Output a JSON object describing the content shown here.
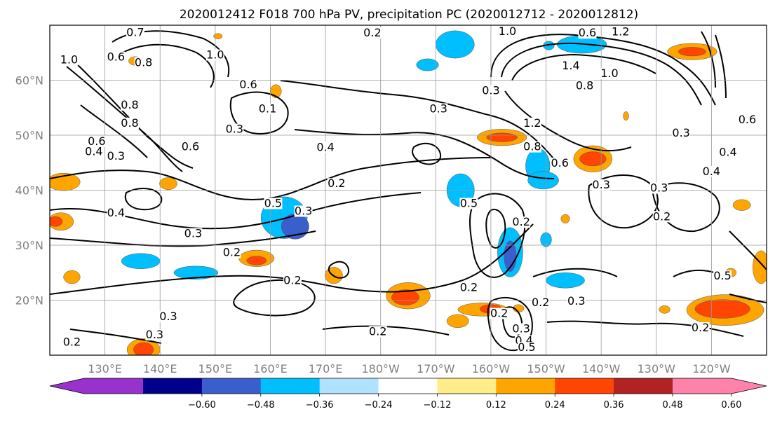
{
  "title": "2020012412 F018 700 hPa PV, precipitation PC (2020012712 - 2020012812)",
  "chart_data": {
    "type": "map",
    "projection": "cylindrical",
    "lon_range": [
      120,
      250
    ],
    "lat_range": [
      10,
      70
    ],
    "grid": true,
    "x_ticks": [
      {
        "lon": 130,
        "label": "130°E"
      },
      {
        "lon": 140,
        "label": "140°E"
      },
      {
        "lon": 150,
        "label": "150°E"
      },
      {
        "lon": 160,
        "label": "160°E"
      },
      {
        "lon": 170,
        "label": "170°E"
      },
      {
        "lon": 180,
        "label": "180°W"
      },
      {
        "lon": 190,
        "label": "170°W"
      },
      {
        "lon": 200,
        "label": "160°W"
      },
      {
        "lon": 210,
        "label": "150°W"
      },
      {
        "lon": 220,
        "label": "140°W"
      },
      {
        "lon": 230,
        "label": "130°W"
      },
      {
        "lon": 240,
        "label": "120°W"
      }
    ],
    "y_ticks": [
      {
        "lat": 20,
        "label": "20°N"
      },
      {
        "lat": 30,
        "label": "30°N"
      },
      {
        "lat": 40,
        "label": "40°N"
      },
      {
        "lat": 50,
        "label": "50°N"
      },
      {
        "lat": 60,
        "label": "60°N"
      }
    ],
    "colorbar": {
      "orientation": "horizontal",
      "extend": "both",
      "levels": [
        -0.72,
        -0.6,
        -0.48,
        -0.36,
        -0.24,
        -0.12,
        0.12,
        0.24,
        0.36,
        0.48,
        0.6,
        0.72
      ],
      "tick_labels": [
        "−0.60",
        "−0.48",
        "−0.36",
        "−0.24",
        "−0.12",
        "0.12",
        "0.24",
        "0.36",
        "0.48",
        "0.60"
      ],
      "tick_values": [
        -0.6,
        -0.48,
        -0.36,
        -0.24,
        -0.12,
        0.12,
        0.24,
        0.36,
        0.48,
        0.6
      ],
      "colors": [
        "#9932cc",
        "#00008b",
        "#3a5fcd",
        "#00bfff",
        "#b0e2ff",
        "#ffffff",
        "#ffec8b",
        "#ffa500",
        "#ff4500",
        "#b22222",
        "#ff82ab"
      ]
    },
    "pv_contour_labels": [
      {
        "value": "0.7",
        "lon": 135.5,
        "lat": 68.3
      },
      {
        "value": "1.0",
        "lon": 123.5,
        "lat": 63.3
      },
      {
        "value": "0.6",
        "lon": 132,
        "lat": 63.8
      },
      {
        "value": "0.8",
        "lon": 137,
        "lat": 62.8
      },
      {
        "value": "1.0",
        "lon": 150,
        "lat": 64.2
      },
      {
        "value": "0.8",
        "lon": 134.5,
        "lat": 55.1
      },
      {
        "value": "0.8",
        "lon": 134.5,
        "lat": 51.8
      },
      {
        "value": "0.6",
        "lon": 128.5,
        "lat": 48.5
      },
      {
        "value": "0.4",
        "lon": 128,
        "lat": 46.6
      },
      {
        "value": "0.3",
        "lon": 132,
        "lat": 45.8
      },
      {
        "value": "0.6",
        "lon": 145.5,
        "lat": 47.5
      },
      {
        "value": "0.6",
        "lon": 156,
        "lat": 58.8
      },
      {
        "value": "0.1",
        "lon": 159.5,
        "lat": 54.4
      },
      {
        "value": "0.3",
        "lon": 153.5,
        "lat": 50.7
      },
      {
        "value": "0.4",
        "lon": 170,
        "lat": 47.4
      },
      {
        "value": "0.2",
        "lon": 172,
        "lat": 40.8
      },
      {
        "value": "0.5",
        "lon": 160.5,
        "lat": 37.2
      },
      {
        "value": "0.3",
        "lon": 166,
        "lat": 35.8
      },
      {
        "value": "0.4",
        "lon": 132,
        "lat": 35.5
      },
      {
        "value": "0.3",
        "lon": 146,
        "lat": 31.7
      },
      {
        "value": "0.2",
        "lon": 153,
        "lat": 28.3
      },
      {
        "value": "0.2",
        "lon": 164,
        "lat": 23.2
      },
      {
        "value": "0.3",
        "lon": 141.5,
        "lat": 16.6
      },
      {
        "value": "0.3",
        "lon": 139,
        "lat": 13.3
      },
      {
        "value": "0.2",
        "lon": 179.5,
        "lat": 13.9
      },
      {
        "value": "0.2",
        "lon": 196,
        "lat": 21.9
      },
      {
        "value": "0.5",
        "lon": 196,
        "lat": 37.2
      },
      {
        "value": "0.3",
        "lon": 190.5,
        "lat": 54.4
      },
      {
        "value": "0.3",
        "lon": 200,
        "lat": 57.7
      },
      {
        "value": "0.2",
        "lon": 178.5,
        "lat": 68.2
      },
      {
        "value": "1.0",
        "lon": 203,
        "lat": 68.5
      },
      {
        "value": "0.6",
        "lon": 217.5,
        "lat": 68.2
      },
      {
        "value": "1.2",
        "lon": 223.5,
        "lat": 68.4
      },
      {
        "value": "1.4",
        "lon": 214.5,
        "lat": 62.2
      },
      {
        "value": "1.0",
        "lon": 221.5,
        "lat": 60.8
      },
      {
        "value": "0.8",
        "lon": 217,
        "lat": 58.6
      },
      {
        "value": "1.2",
        "lon": 207.5,
        "lat": 51.8
      },
      {
        "value": "0.8",
        "lon": 207.5,
        "lat": 47.5
      },
      {
        "value": "0.6",
        "lon": 212.5,
        "lat": 44.5
      },
      {
        "value": "0.3",
        "lon": 220,
        "lat": 40.6
      },
      {
        "value": "0.3",
        "lon": 230.5,
        "lat": 40.0
      },
      {
        "value": "0.2",
        "lon": 231,
        "lat": 34.8
      },
      {
        "value": "0.4",
        "lon": 243,
        "lat": 46.5
      },
      {
        "value": "0.4",
        "lon": 240,
        "lat": 43.0
      },
      {
        "value": "0.3",
        "lon": 234.5,
        "lat": 50.0
      },
      {
        "value": "0.6",
        "lon": 246.5,
        "lat": 52.4
      },
      {
        "value": "0.2",
        "lon": 205.5,
        "lat": 33.8
      },
      {
        "value": "0.3",
        "lon": 215.5,
        "lat": 19.4
      },
      {
        "value": "0.2",
        "lon": 209,
        "lat": 19.2
      },
      {
        "value": "0.2",
        "lon": 201.5,
        "lat": 17.2
      },
      {
        "value": "0.3",
        "lon": 205.5,
        "lat": 14.4
      },
      {
        "value": "0.4",
        "lon": 206,
        "lat": 12.2
      },
      {
        "value": "0.5",
        "lon": 206.5,
        "lat": 11.0
      },
      {
        "value": "0.2",
        "lon": 238,
        "lat": 14.6
      },
      {
        "value": "0.5",
        "lon": 242,
        "lat": 24.0
      },
      {
        "value": "0.2",
        "lon": 124,
        "lat": 12.0
      }
    ],
    "precip_patches": [
      {
        "color": "#00bfff",
        "lon": 193.5,
        "lat": 66.5,
        "rx": 3.5,
        "ry": 2.5
      },
      {
        "color": "#00bfff",
        "lon": 216.5,
        "lat": 66.5,
        "rx": 4.5,
        "ry": 1.6
      },
      {
        "color": "#00bfff",
        "lon": 210.5,
        "lat": 66.3,
        "rx": 1.0,
        "ry": 0.8
      },
      {
        "color": "#00bfff",
        "lon": 188.5,
        "lat": 62.8,
        "rx": 2.0,
        "ry": 1.1
      },
      {
        "color": "#00bfff",
        "lon": 208.5,
        "lat": 44.4,
        "rx": 2.2,
        "ry": 3.2
      },
      {
        "color": "#00bfff",
        "lon": 209.5,
        "lat": 41.8,
        "rx": 2.8,
        "ry": 1.6
      },
      {
        "color": "#00bfff",
        "lon": 194.5,
        "lat": 40.0,
        "rx": 2.5,
        "ry": 3.0
      },
      {
        "color": "#00bfff",
        "lon": 162.5,
        "lat": 35.0,
        "rx": 4.2,
        "ry": 3.8
      },
      {
        "color": "#3a5fcd",
        "lon": 164.5,
        "lat": 33.4,
        "rx": 2.5,
        "ry": 2.3
      },
      {
        "color": "#00bfff",
        "lon": 203.5,
        "lat": 28.7,
        "rx": 2.3,
        "ry": 4.5
      },
      {
        "color": "#3a5fcd",
        "lon": 203.5,
        "lat": 28.0,
        "rx": 1.1,
        "ry": 2.8
      },
      {
        "color": "#00bfff",
        "lon": 213.5,
        "lat": 23.6,
        "rx": 3.5,
        "ry": 1.4
      },
      {
        "color": "#00bfff",
        "lon": 146.5,
        "lat": 25.0,
        "rx": 4.0,
        "ry": 1.2
      },
      {
        "color": "#00bfff",
        "lon": 136.5,
        "lat": 27.1,
        "rx": 3.5,
        "ry": 1.4
      },
      {
        "color": "#00bfff",
        "lon": 210.0,
        "lat": 31.0,
        "rx": 1.0,
        "ry": 1.3
      },
      {
        "color": "#ffa500",
        "lon": 150.5,
        "lat": 68.0,
        "rx": 0.8,
        "ry": 0.5
      },
      {
        "color": "#ffa500",
        "lon": 135.5,
        "lat": 63.5,
        "rx": 1.2,
        "ry": 0.8
      },
      {
        "color": "#ffa500",
        "lon": 161.0,
        "lat": 58.0,
        "rx": 1.0,
        "ry": 1.2
      },
      {
        "color": "#ffa500",
        "lon": 236.5,
        "lat": 65.2,
        "rx": 4.5,
        "ry": 1.5
      },
      {
        "color": "#ff4500",
        "lon": 236.5,
        "lat": 65.2,
        "rx": 2.5,
        "ry": 0.8
      },
      {
        "color": "#ffa500",
        "lon": 202.0,
        "lat": 49.6,
        "rx": 4.5,
        "ry": 1.5
      },
      {
        "color": "#ff4500",
        "lon": 202.0,
        "lat": 49.6,
        "rx": 2.8,
        "ry": 0.8
      },
      {
        "color": "#ffa500",
        "lon": 218.5,
        "lat": 45.7,
        "rx": 3.5,
        "ry": 2.4
      },
      {
        "color": "#ff4500",
        "lon": 218.5,
        "lat": 45.7,
        "rx": 2.4,
        "ry": 1.3
      },
      {
        "color": "#ffa500",
        "lon": 122.5,
        "lat": 41.5,
        "rx": 3.0,
        "ry": 1.6
      },
      {
        "color": "#ffa500",
        "lon": 141.5,
        "lat": 41.2,
        "rx": 1.6,
        "ry": 1.1
      },
      {
        "color": "#ffa500",
        "lon": 122.0,
        "lat": 34.3,
        "rx": 2.3,
        "ry": 1.6
      },
      {
        "color": "#ff4500",
        "lon": 121.0,
        "lat": 34.3,
        "rx": 1.3,
        "ry": 0.9
      },
      {
        "color": "#ffa500",
        "lon": 157.5,
        "lat": 27.6,
        "rx": 3.2,
        "ry": 1.5
      },
      {
        "color": "#ff4500",
        "lon": 157.5,
        "lat": 27.2,
        "rx": 1.8,
        "ry": 0.8
      },
      {
        "color": "#ffa500",
        "lon": 171.5,
        "lat": 24.5,
        "rx": 1.6,
        "ry": 1.5
      },
      {
        "color": "#ffa500",
        "lon": 185.0,
        "lat": 20.8,
        "rx": 4.0,
        "ry": 2.4
      },
      {
        "color": "#ff4500",
        "lon": 184.5,
        "lat": 20.5,
        "rx": 2.5,
        "ry": 1.4
      },
      {
        "color": "#ffa500",
        "lon": 198.5,
        "lat": 18.3,
        "rx": 4.5,
        "ry": 1.2
      },
      {
        "color": "#ff4500",
        "lon": 200.0,
        "lat": 18.4,
        "rx": 2.0,
        "ry": 0.8
      },
      {
        "color": "#ffa500",
        "lon": 242.5,
        "lat": 18.2,
        "rx": 7.0,
        "ry": 2.8
      },
      {
        "color": "#ff4500",
        "lon": 242.0,
        "lat": 18.4,
        "rx": 5.0,
        "ry": 1.7
      },
      {
        "color": "#ffa500",
        "lon": 137.0,
        "lat": 11.0,
        "rx": 3.0,
        "ry": 2.0
      },
      {
        "color": "#ff4500",
        "lon": 137.0,
        "lat": 11.0,
        "rx": 1.8,
        "ry": 1.3
      },
      {
        "color": "#ffa500",
        "lon": 124.0,
        "lat": 24.2,
        "rx": 1.5,
        "ry": 1.2
      },
      {
        "color": "#ffa500",
        "lon": 194.0,
        "lat": 16.2,
        "rx": 2.0,
        "ry": 1.2
      },
      {
        "color": "#ffa500",
        "lon": 249.0,
        "lat": 26.0,
        "rx": 1.5,
        "ry": 3.0
      },
      {
        "color": "#ffa500",
        "lon": 245.5,
        "lat": 37.3,
        "rx": 1.6,
        "ry": 1.0
      },
      {
        "color": "#ffa500",
        "lon": 243.5,
        "lat": 25.0,
        "rx": 1.0,
        "ry": 0.8
      },
      {
        "color": "#ffa500",
        "lon": 231.5,
        "lat": 18.3,
        "rx": 1.0,
        "ry": 0.7
      },
      {
        "color": "#ffa500",
        "lon": 213.5,
        "lat": 34.8,
        "rx": 0.8,
        "ry": 0.8
      },
      {
        "color": "#ffa500",
        "lon": 205.0,
        "lat": 18.5,
        "rx": 1.0,
        "ry": 0.7
      },
      {
        "color": "#ffa500",
        "lon": 224.5,
        "lat": 53.5,
        "rx": 0.5,
        "ry": 0.8
      }
    ]
  }
}
